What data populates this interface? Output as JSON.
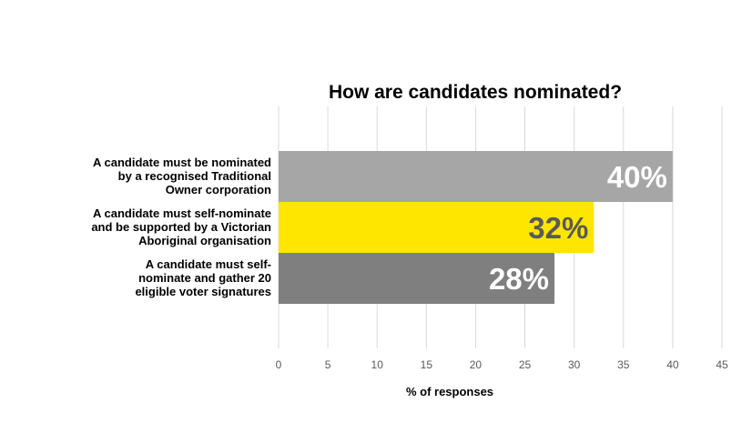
{
  "chart_data": {
    "type": "bar",
    "orientation": "horizontal",
    "title": "How are candidates nominated?",
    "xlabel": "% of responses",
    "ylabel": "",
    "xlim": [
      0,
      45
    ],
    "x_ticks": [
      0,
      5,
      10,
      15,
      20,
      25,
      30,
      35,
      40,
      45
    ],
    "grid": true,
    "legend": "none",
    "categories": [
      [
        "A candidate must be nominated",
        "by a recognised Traditional",
        "Owner corporation"
      ],
      [
        "A candidate must self-nominate",
        "and be supported by a Victorian",
        "Aboriginal organisation"
      ],
      [
        "A candidate must self-",
        "nominate and gather 20",
        "eligible voter signatures"
      ]
    ],
    "values": [
      40,
      32,
      28
    ],
    "data_labels": [
      "40%",
      "32%",
      "28%"
    ],
    "bar_colors": [
      "#a6a6a6",
      "#ffe600",
      "#7f7f7f"
    ],
    "label_colors": [
      "#ffffff",
      "#595959",
      "#ffffff"
    ]
  }
}
